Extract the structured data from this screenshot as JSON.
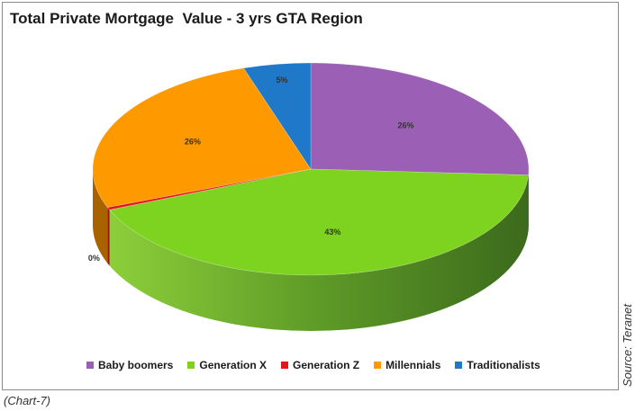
{
  "chart_data": {
    "type": "pie",
    "title": "Total Private Mortgage  Value - 3 yrs GTA Region",
    "categories": [
      "Baby boomers",
      "Generation X",
      "Generation Z",
      "Millennials",
      "Traditionalists"
    ],
    "values": [
      26,
      43,
      0.4,
      26,
      5
    ],
    "labels": [
      "26%",
      "43%",
      "0%",
      "26%",
      "5%"
    ],
    "colors": [
      "#9b5fb5",
      "#7ed321",
      "#e8141b",
      "#ff9900",
      "#1f78c8"
    ],
    "side_colors": [
      "#5e3a6e",
      "#4f7f1f",
      "#9a1016",
      "#a86300",
      "#144f85"
    ],
    "legend_position": "bottom",
    "style": "3d"
  },
  "source": "Source: Teranet",
  "caption": "(Chart-7)"
}
